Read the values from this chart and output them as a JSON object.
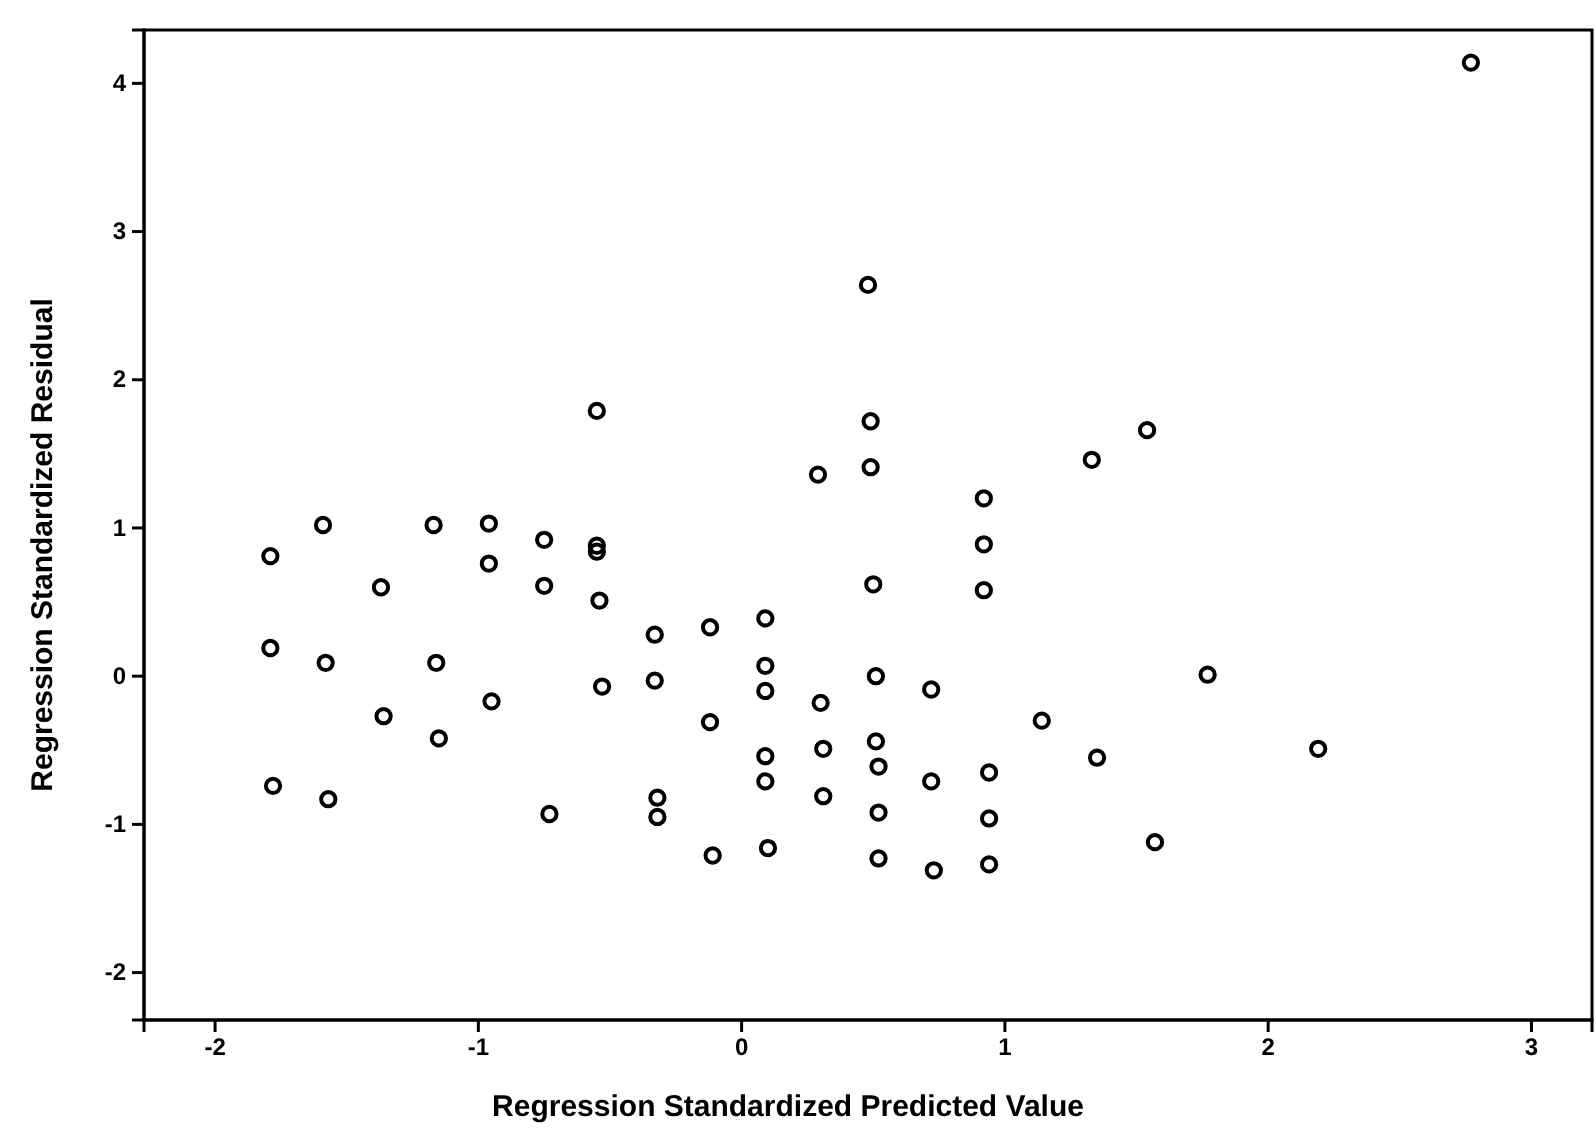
{
  "chart_data": {
    "type": "scatter",
    "xlabel": "Regression Standardized Predicted Value",
    "ylabel": "Regression Standardized Residual",
    "xlim": [
      -2.27,
      3.23
    ],
    "ylim": [
      -2.32,
      4.36
    ],
    "xticks": [
      -2,
      -1,
      0,
      1,
      2,
      3
    ],
    "yticks": [
      -2,
      -1,
      0,
      1,
      2,
      3,
      4
    ],
    "marker": "circle",
    "series": [
      {
        "color": "#000000",
        "x": [
          2.77,
          -0.55,
          0.29,
          -1.79,
          -1.59,
          -1.17,
          -0.96,
          -0.96,
          -0.75,
          -0.75,
          -0.55,
          -0.55,
          -1.37,
          -0.54,
          -0.33,
          -0.12,
          0.09,
          -1.79,
          -1.58,
          -1.16,
          -0.95,
          -1.36,
          -1.15,
          -0.53,
          -0.33,
          0.09,
          0.09,
          -0.12,
          0.3,
          0.31,
          0.09,
          0.09,
          0.31,
          -1.78,
          -1.57,
          -0.73,
          -0.32,
          -0.32,
          -0.11,
          0.1,
          0.48,
          0.49,
          0.49,
          1.54,
          1.33,
          0.92,
          0.92,
          0.92,
          0.5,
          0.51,
          0.72,
          1.77,
          1.14,
          0.51,
          0.52,
          0.72,
          0.94,
          1.35,
          0.52,
          0.94,
          1.57,
          0.52,
          0.73,
          0.94,
          2.19
        ],
        "values": [
          4.14,
          1.79,
          1.36,
          0.81,
          1.02,
          1.02,
          1.03,
          0.76,
          0.92,
          0.61,
          0.88,
          0.84,
          0.6,
          0.51,
          0.28,
          0.33,
          0.39,
          0.19,
          0.09,
          0.09,
          -0.17,
          -0.27,
          -0.42,
          -0.07,
          -0.03,
          0.07,
          -0.1,
          -0.31,
          -0.18,
          -0.49,
          -0.54,
          -0.71,
          -0.81,
          -0.74,
          -0.83,
          -0.93,
          -0.82,
          -0.95,
          -1.21,
          -1.16,
          2.64,
          1.72,
          1.41,
          1.66,
          1.46,
          1.2,
          0.89,
          0.58,
          0.62,
          0.0,
          -0.09,
          0.01,
          -0.3,
          -0.44,
          -0.61,
          -0.71,
          -0.65,
          -0.55,
          -0.92,
          -0.96,
          -1.12,
          -1.23,
          -1.31,
          -1.27,
          -0.49
        ]
      }
    ]
  }
}
